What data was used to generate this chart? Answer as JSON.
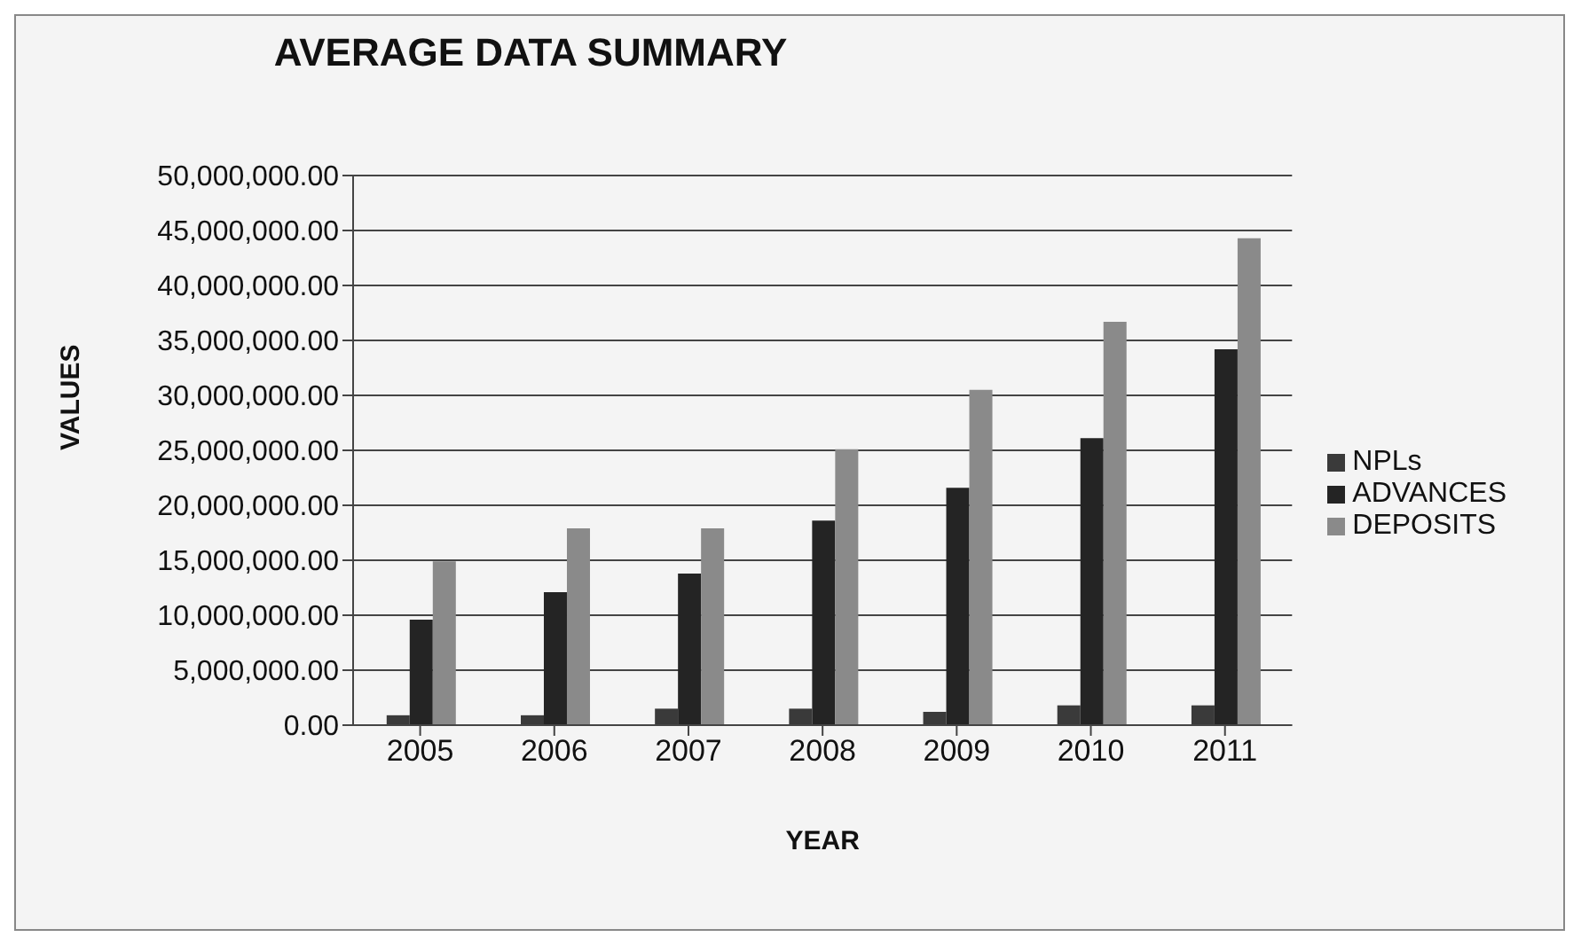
{
  "chart_data": {
    "type": "bar",
    "title": "AVERAGE DATA SUMMARY",
    "xlabel": "YEAR",
    "ylabel": "VALUES",
    "categories": [
      "2005",
      "2006",
      "2007",
      "2008",
      "2009",
      "2010",
      "2011"
    ],
    "series": [
      {
        "name": "NPLs",
        "color": "#3a3a3a",
        "values": [
          900000,
          900000,
          1500000,
          1500000,
          1200000,
          1800000,
          1800000
        ]
      },
      {
        "name": "ADVANCES",
        "color": "#242424",
        "values": [
          9600000,
          12100000,
          13800000,
          18600000,
          21600000,
          26100000,
          34200000
        ]
      },
      {
        "name": "DEPOSITS",
        "color": "#8a8a8a",
        "values": [
          14900000,
          17900000,
          17900000,
          25100000,
          30500000,
          36700000,
          44300000
        ]
      }
    ],
    "ylim": [
      0,
      50000000
    ],
    "yticks": [
      {
        "value": 0,
        "label": "0.00"
      },
      {
        "value": 5000000,
        "label": "5,000,000.00"
      },
      {
        "value": 10000000,
        "label": "10,000,000.00"
      },
      {
        "value": 15000000,
        "label": "15,000,000.00"
      },
      {
        "value": 20000000,
        "label": "20,000,000.00"
      },
      {
        "value": 25000000,
        "label": "25,000,000.00"
      },
      {
        "value": 30000000,
        "label": "30,000,000.00"
      },
      {
        "value": 35000000,
        "label": "35,000,000.00"
      },
      {
        "value": 40000000,
        "label": "40,000,000.00"
      },
      {
        "value": 45000000,
        "label": "45,000,000.00"
      },
      {
        "value": 50000000,
        "label": "50,000,000.00"
      }
    ],
    "grid": "y",
    "legend": "right"
  }
}
